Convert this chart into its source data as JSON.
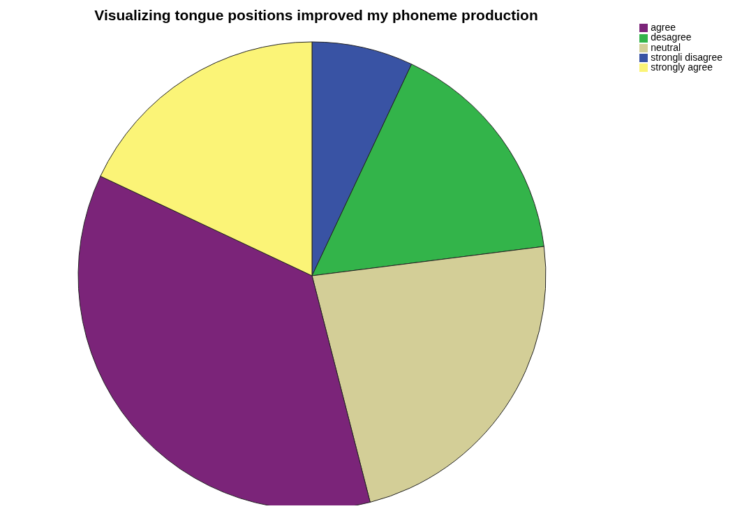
{
  "chart_data": {
    "type": "pie",
    "title": "Visualizing tongue positions improved my phoneme production",
    "categories": [
      "strongli disagree",
      "desagree",
      "neutral",
      "agree",
      "strongly agree"
    ],
    "values": [
      7,
      16,
      23,
      36,
      18
    ],
    "colors": [
      "#3953a4",
      "#33b44a",
      "#d3ce97",
      "#7b2479",
      "#fbf477"
    ],
    "legend": "top right"
  }
}
